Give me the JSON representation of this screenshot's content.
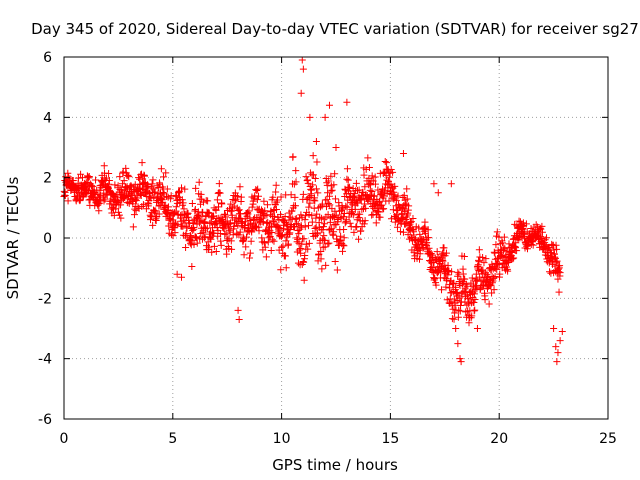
{
  "chart_data": {
    "type": "scatter",
    "title": "Day 345 of 2020, Sidereal Day-to-day VTEC variation (SDTVAR) for receiver sg27",
    "xlabel": "GPS time / hours",
    "ylabel": "SDTVAR / TECUs",
    "xlim": [
      0,
      25
    ],
    "ylim": [
      -6,
      6
    ],
    "xticks": [
      0,
      5,
      10,
      15,
      20,
      25
    ],
    "yticks": [
      -6,
      -4,
      -2,
      0,
      2,
      4,
      6
    ],
    "grid": true,
    "marker": "+",
    "color": "#ff0000",
    "series": [
      {
        "name": "SDTVAR",
        "trend": {
          "x": [
            0,
            0.5,
            1,
            1.5,
            2,
            2.5,
            3,
            3.5,
            4,
            4.5,
            5,
            5.5,
            6,
            6.5,
            7,
            7.5,
            8,
            8.5,
            9,
            9.5,
            10,
            10.5,
            11,
            11.5,
            12,
            12.5,
            13,
            13.5,
            14,
            14.5,
            15,
            15.5,
            16,
            16.5,
            17,
            17.5,
            18,
            18.5,
            19,
            19.5,
            20,
            20.5,
            21,
            21.5,
            22,
            22.5,
            22.8
          ],
          "y": [
            1.6,
            1.7,
            1.5,
            1.6,
            1.5,
            1.4,
            1.5,
            1.4,
            1.3,
            1.1,
            1.0,
            0.6,
            0.5,
            0.6,
            0.4,
            0.8,
            0.6,
            0.5,
            0.6,
            0.4,
            0.4,
            0.6,
            0.4,
            0.8,
            0.6,
            0.7,
            0.8,
            1.2,
            1.3,
            1.5,
            1.6,
            0.9,
            0.3,
            -0.3,
            -0.8,
            -1.2,
            -1.8,
            -2.0,
            -1.5,
            -1.2,
            -0.8,
            -0.5,
            0.2,
            0.0,
            0.0,
            -0.8,
            -1.5
          ]
        },
        "spread": {
          "x": [
            0,
            2,
            4,
            6,
            8,
            10,
            11,
            12,
            13,
            14,
            15,
            16,
            17,
            18,
            19,
            20,
            21,
            22,
            22.8
          ],
          "y": [
            0.4,
            0.6,
            0.8,
            1.0,
            0.9,
            1.0,
            1.6,
            1.5,
            1.2,
            1.0,
            0.8,
            0.7,
            0.7,
            0.9,
            1.0,
            0.8,
            0.4,
            0.4,
            0.9
          ]
        },
        "outliers": [
          {
            "x": 5.2,
            "y": -1.2
          },
          {
            "x": 5.4,
            "y": -1.3
          },
          {
            "x": 8.0,
            "y": -2.4
          },
          {
            "x": 8.05,
            "y": -2.7
          },
          {
            "x": 10.9,
            "y": 4.8
          },
          {
            "x": 10.95,
            "y": 5.9
          },
          {
            "x": 11.0,
            "y": 5.6
          },
          {
            "x": 11.3,
            "y": 4.0
          },
          {
            "x": 11.6,
            "y": 3.2
          },
          {
            "x": 12.0,
            "y": 4.0
          },
          {
            "x": 12.2,
            "y": 4.4
          },
          {
            "x": 12.5,
            "y": 3.0
          },
          {
            "x": 13.0,
            "y": 4.5
          },
          {
            "x": 15.6,
            "y": 2.8
          },
          {
            "x": 17.0,
            "y": 1.8
          },
          {
            "x": 17.2,
            "y": 1.5
          },
          {
            "x": 17.8,
            "y": 1.8
          },
          {
            "x": 18.0,
            "y": -3.0
          },
          {
            "x": 18.1,
            "y": -3.5
          },
          {
            "x": 18.2,
            "y": -4.0
          },
          {
            "x": 18.25,
            "y": -4.1
          },
          {
            "x": 19.0,
            "y": -3.0
          },
          {
            "x": 22.5,
            "y": -3.0
          },
          {
            "x": 22.6,
            "y": -3.6
          },
          {
            "x": 22.65,
            "y": -4.1
          },
          {
            "x": 22.7,
            "y": -3.8
          },
          {
            "x": 22.8,
            "y": -3.4
          },
          {
            "x": 22.9,
            "y": -3.1
          }
        ]
      }
    ]
  }
}
